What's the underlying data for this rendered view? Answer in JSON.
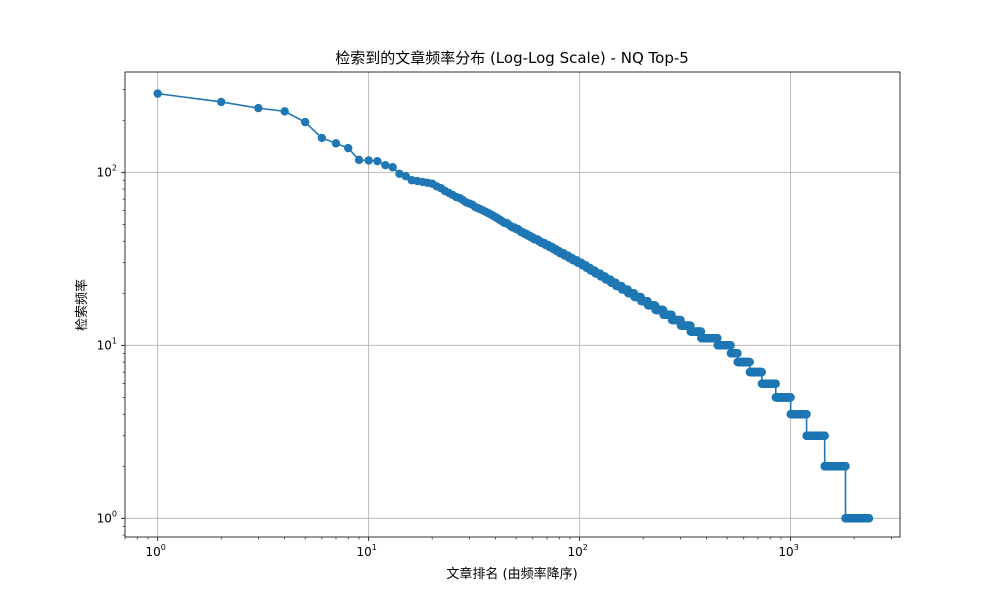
{
  "chart_data": {
    "type": "line",
    "title": "检索到的文章频率分布 (Log-Log Scale) - NQ Top-5",
    "xlabel": "文章排名 (由频率降序)",
    "ylabel": "检索频率",
    "x_scale": "log",
    "y_scale": "log",
    "xlim": [
      0.7,
      3300
    ],
    "ylim": [
      0.78,
      380
    ],
    "grid": true,
    "marker": "circle",
    "colors": {
      "series": "#1f77b4",
      "grid": "#b0b0b0"
    },
    "x_ticks": [
      {
        "base": "10",
        "exp": "0",
        "value": 1
      },
      {
        "base": "10",
        "exp": "1",
        "value": 10
      },
      {
        "base": "10",
        "exp": "2",
        "value": 100
      },
      {
        "base": "10",
        "exp": "3",
        "value": 1000
      }
    ],
    "y_ticks": [
      {
        "base": "10",
        "exp": "0",
        "value": 1
      },
      {
        "base": "10",
        "exp": "1",
        "value": 10
      },
      {
        "base": "10",
        "exp": "2",
        "value": 100
      }
    ],
    "head_points": {
      "x": [
        1,
        2,
        3,
        4,
        5,
        6,
        7,
        8,
        9,
        10,
        11,
        12,
        13,
        14,
        15,
        16,
        17,
        18,
        19,
        20
      ],
      "y": [
        285,
        255,
        235,
        225,
        195,
        158,
        147,
        138,
        118,
        117,
        116,
        110,
        107,
        98,
        95,
        90,
        89,
        88,
        87,
        86
      ]
    },
    "power_law_segments": [
      {
        "from_rank": 20,
        "to_rank": 100,
        "from_value": 86,
        "to_value": 30
      },
      {
        "from_rank": 100,
        "to_rank": 400,
        "from_value": 30,
        "to_value": 11
      }
    ],
    "plateaus": [
      {
        "value": 11,
        "from_rank": 400,
        "to_rank": 450
      },
      {
        "value": 10,
        "from_rank": 450,
        "to_rank": 520
      },
      {
        "value": 9,
        "from_rank": 520,
        "to_rank": 560
      },
      {
        "value": 8,
        "from_rank": 560,
        "to_rank": 640
      },
      {
        "value": 7,
        "from_rank": 640,
        "to_rank": 730
      },
      {
        "value": 6,
        "from_rank": 730,
        "to_rank": 850
      },
      {
        "value": 5,
        "from_rank": 850,
        "to_rank": 1000
      },
      {
        "value": 4,
        "from_rank": 1000,
        "to_rank": 1190
      },
      {
        "value": 3,
        "from_rank": 1190,
        "to_rank": 1450
      },
      {
        "value": 2,
        "from_rank": 1450,
        "to_rank": 1820
      },
      {
        "value": 1,
        "from_rank": 1820,
        "to_rank": 2350
      }
    ]
  }
}
